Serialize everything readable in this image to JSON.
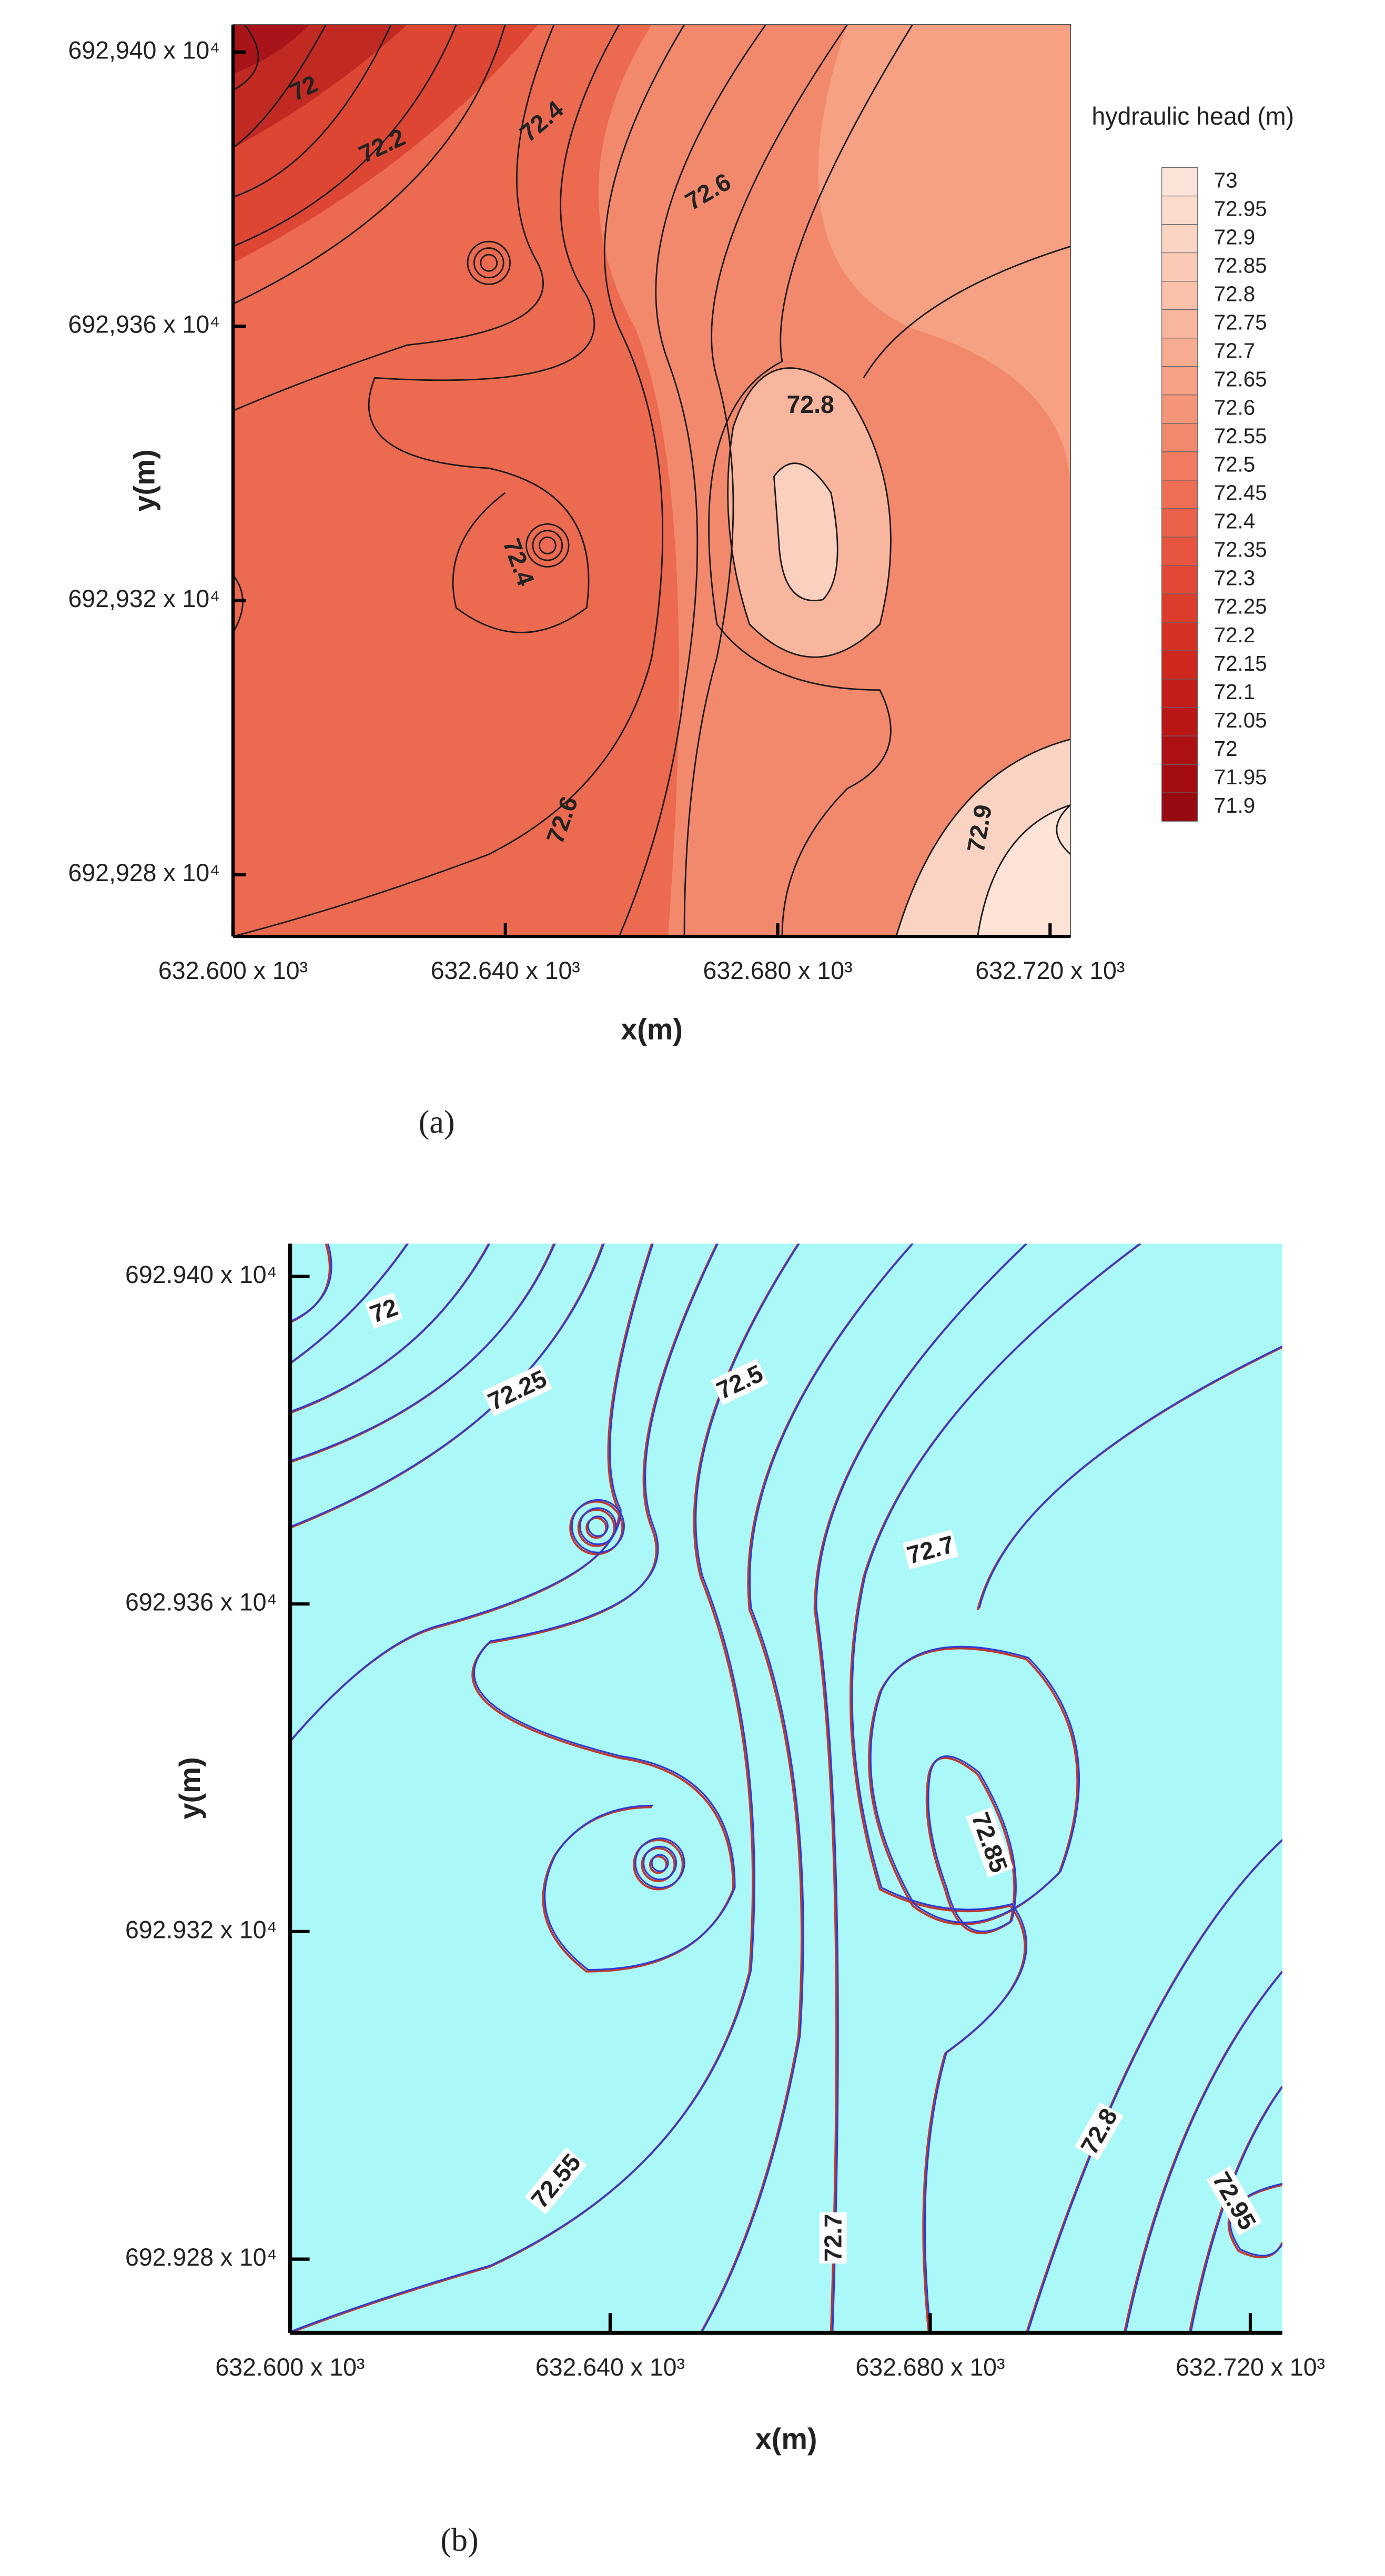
{
  "chart_data": [
    {
      "type": "contour",
      "caption": "(a)",
      "x_label": "x(m)",
      "y_label": "y(m)",
      "xlim": [
        632600,
        632723
      ],
      "ylim": [
        6929271,
        6929404
      ],
      "xticks": [
        {
          "value": 632600,
          "label": "632.600 x 10³"
        },
        {
          "value": 632640,
          "label": "632.640 x 10³"
        },
        {
          "value": 632680,
          "label": "632.680 x 10³"
        },
        {
          "value": 632720,
          "label": "632.720 x 10³"
        }
      ],
      "yticks": [
        {
          "value": 6929400,
          "label": "692,940 x 10⁴"
        },
        {
          "value": 6929360,
          "label": "692,936 x 10⁴"
        },
        {
          "value": 6929320,
          "label": "692,932 x 10⁴"
        },
        {
          "value": 6929280,
          "label": "692,928 x 10⁴"
        }
      ],
      "contour_labels": [
        {
          "value": 72,
          "x": 632610.5,
          "y": 6929394.5
        },
        {
          "value": 72.2,
          "x": 632622.0,
          "y": 6929386.1
        },
        {
          "value": 72.4,
          "x": 632645.5,
          "y": 6929389.7
        },
        {
          "value": 72.6,
          "x": 632669.9,
          "y": 6929379.4
        },
        {
          "value": 72.8,
          "x": 632684.8,
          "y": 6929348.3
        },
        {
          "value": 72.4,
          "x": 632641.7,
          "y": 6929325.5
        },
        {
          "value": 72.6,
          "x": 632648.6,
          "y": 6929287.9
        },
        {
          "value": 72.9,
          "x": 632709.9,
          "y": 6929286.7
        }
      ],
      "colorbar": {
        "title": "hydraulic head (m)",
        "levels": [
          73,
          72.95,
          72.9,
          72.85,
          72.8,
          72.75,
          72.7,
          72.65,
          72.6,
          72.55,
          72.5,
          72.45,
          72.4,
          72.35,
          72.3,
          72.25,
          72.2,
          72.15,
          72.1,
          72.05,
          72,
          71.95,
          71.9
        ],
        "colors": [
          "#fde4d8",
          "#fcdccd",
          "#fbd3c2",
          "#facab6",
          "#f9c0aa",
          "#f8b69e",
          "#f7ab91",
          "#f6a085",
          "#f49479",
          "#f2886d",
          "#f07b61",
          "#ee6e55",
          "#eb614a",
          "#e7543f",
          "#e24835",
          "#dc3c2c",
          "#d53124",
          "#cd271e",
          "#c31e19",
          "#b91715",
          "#ae1113",
          "#a30d12",
          "#980a11"
        ]
      }
    },
    {
      "type": "contour",
      "caption": "(b)",
      "x_label": "x(m)",
      "y_label": "y(m)",
      "xlim": [
        632600,
        632724
      ],
      "ylim": [
        6929271,
        6929404
      ],
      "xticks": [
        {
          "value": 632600,
          "label": "632.600 x 10³"
        },
        {
          "value": 632640,
          "label": "632.640 x 10³"
        },
        {
          "value": 632680,
          "label": "632.680 x 10³"
        },
        {
          "value": 632720,
          "label": "632.720 x 10³"
        }
      ],
      "yticks": [
        {
          "value": 6929400,
          "label": "692.940 x 10⁴"
        },
        {
          "value": 6929360,
          "label": "692.936 x 10⁴"
        },
        {
          "value": 6929320,
          "label": "692.932 x 10⁴"
        },
        {
          "value": 6929280,
          "label": "692.928 x 10⁴"
        }
      ],
      "contour_labels": [
        {
          "value": 72,
          "x": 632611.8,
          "y": 6929395.6
        },
        {
          "value": 72.25,
          "x": 632628.5,
          "y": 6929385.9
        },
        {
          "value": 72.5,
          "x": 632656.3,
          "y": 6929386.9
        },
        {
          "value": 72.7,
          "x": 632680.1,
          "y": 6929366.4
        },
        {
          "value": 72.85,
          "x": 632687.2,
          "y": 6929330.8
        },
        {
          "value": 72.55,
          "x": 632633.4,
          "y": 6929289.4
        },
        {
          "value": 72.7,
          "x": 632668.1,
          "y": 6929282.6
        },
        {
          "value": 72.8,
          "x": 632701.3,
          "y": 6929295.5
        },
        {
          "value": 72.95,
          "x": 632717.8,
          "y": 6929287.0
        }
      ]
    }
  ]
}
